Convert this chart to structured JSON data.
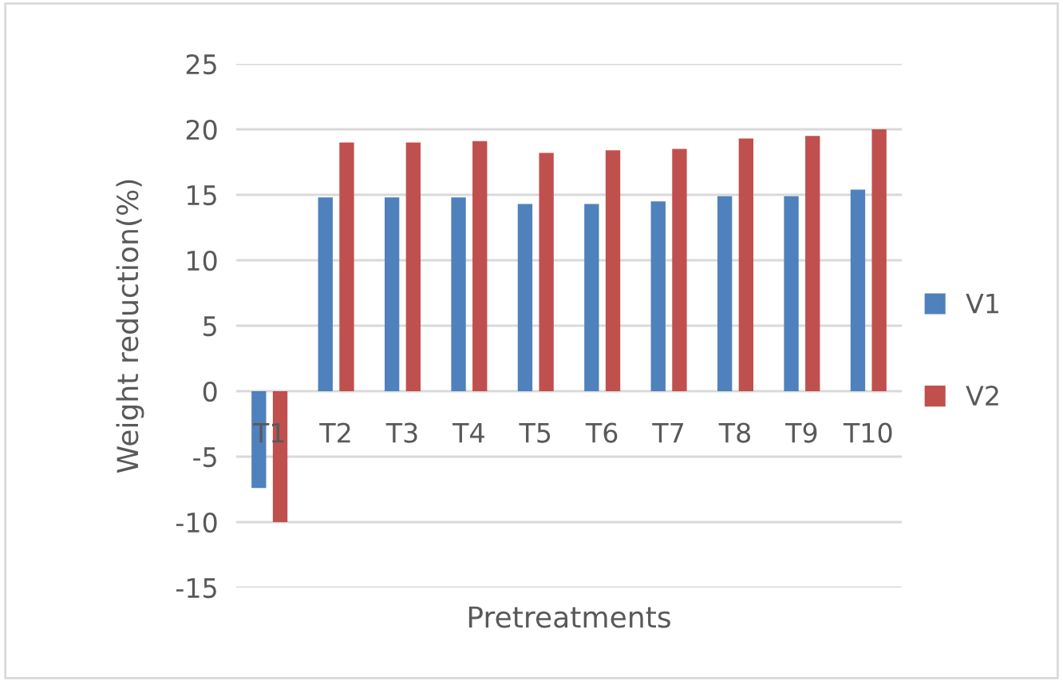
{
  "chart_data": {
    "type": "bar",
    "xlabel": "Pretreatments",
    "ylabel": "Weight reduction(%)",
    "categories": [
      "T1",
      "T2",
      "T3",
      "T4",
      "T5",
      "T6",
      "T7",
      "T8",
      "T9",
      "T10"
    ],
    "series": [
      {
        "name": "V1",
        "color": "#4f81bd",
        "values": [
          -7.4,
          14.8,
          14.8,
          14.8,
          14.3,
          14.3,
          14.5,
          14.9,
          14.9,
          15.4
        ]
      },
      {
        "name": "V2",
        "color": "#c0504d",
        "values": [
          -10,
          19.0,
          19.0,
          19.1,
          18.2,
          18.4,
          18.5,
          19.3,
          19.5,
          20.0
        ]
      }
    ],
    "ylim": [
      -15,
      25
    ],
    "yticks": [
      -15,
      -10,
      -5,
      0,
      5,
      10,
      15,
      20,
      25
    ],
    "grid": "y",
    "legend": "right"
  }
}
